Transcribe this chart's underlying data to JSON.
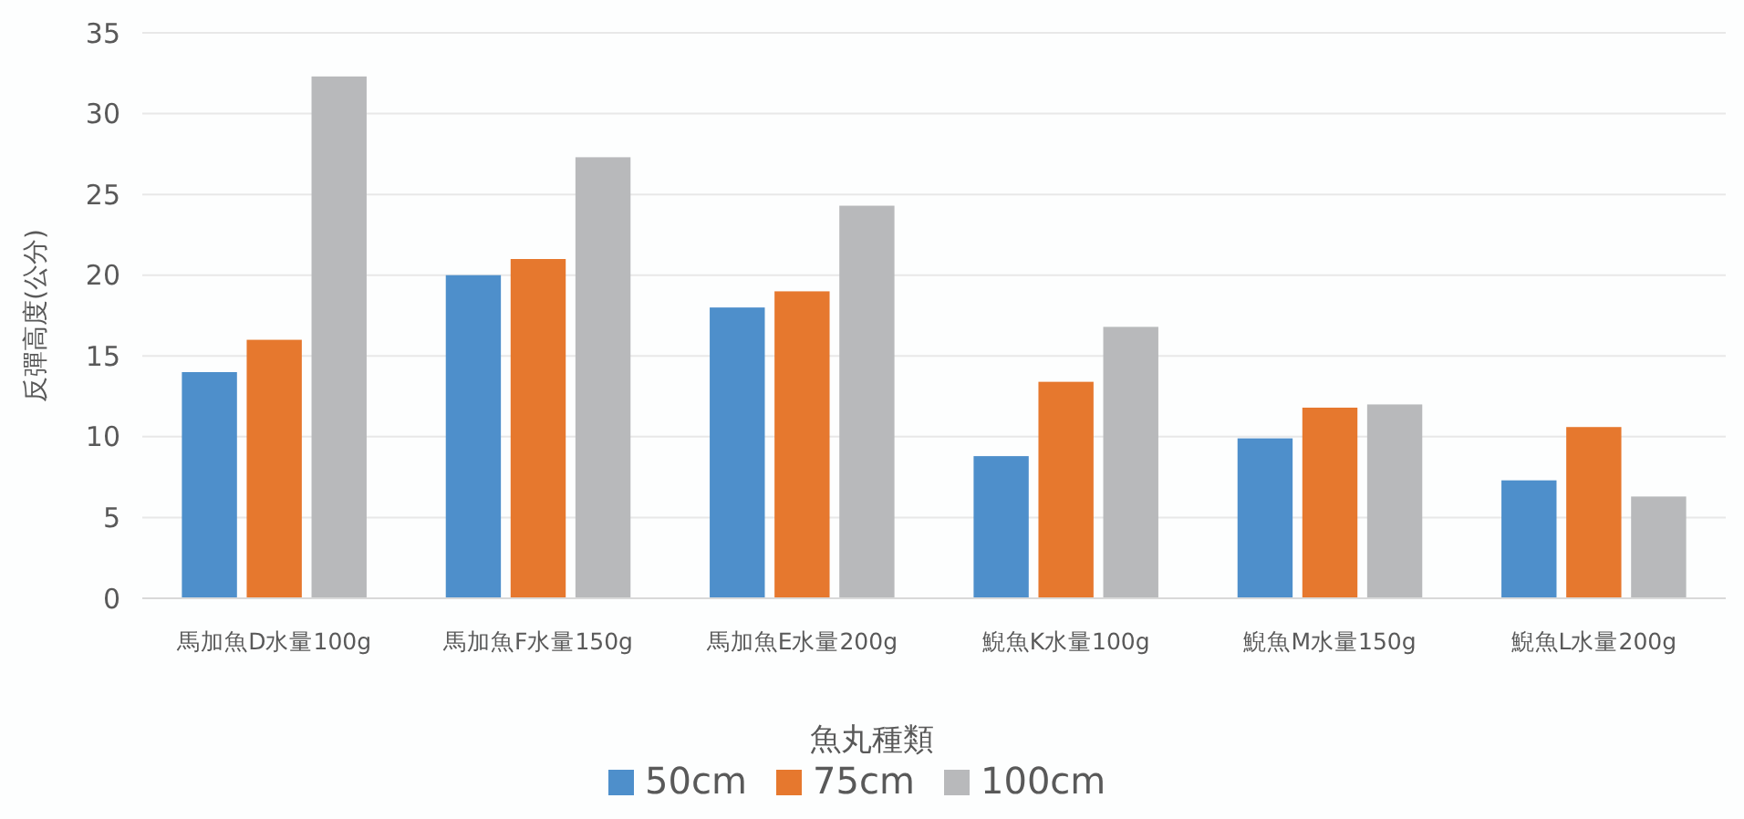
{
  "chart_data": {
    "type": "bar",
    "xlabel": "魚丸種類",
    "ylabel": "反彈高度(公分)",
    "categories": [
      "馬加魚D水量100g",
      "馬加魚F水量150g",
      "馬加魚E水量200g",
      "鯢魚K水量100g",
      "鯢魚M水量150g",
      "鯢魚L水量200g"
    ],
    "series": [
      {
        "name": "50cm",
        "color": "#4e8fcb",
        "values": [
          14,
          20,
          18,
          8.8,
          9.9,
          7.3
        ]
      },
      {
        "name": "75cm",
        "color": "#e6782e",
        "values": [
          16,
          21,
          19,
          13.4,
          11.8,
          10.6
        ]
      },
      {
        "name": "100cm",
        "color": "#b8b9bb",
        "values": [
          32.3,
          27.3,
          24.3,
          16.8,
          12,
          6.3
        ]
      }
    ],
    "ylim": [
      0,
      35
    ],
    "yticks": [
      0,
      5,
      10,
      15,
      20,
      25,
      30,
      35
    ],
    "grid": "y",
    "legend": "bottom"
  }
}
